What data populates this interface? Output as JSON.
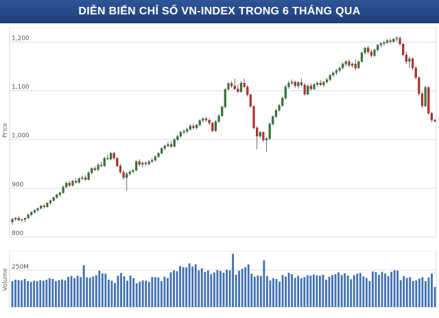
{
  "title": "DIỄN BIẾN CHỈ SỐ VN-INDEX TRONG 6 THÁNG QUA",
  "colors": {
    "header": "#2a4f8f",
    "up": "#2e7d32",
    "down": "#c62828",
    "volume": "#3f6fb0",
    "grid": "#dddddd"
  },
  "chart_data": [
    {
      "type": "candlestick",
      "ylabel": "Price",
      "ylim": [
        800,
        1230
      ],
      "yticks": [
        800,
        900,
        1000,
        1100,
        1200
      ],
      "ytick_labels": [
        "800",
        "900",
        "1,000",
        "1,100",
        "1,200"
      ],
      "grid": true,
      "ohlc": [
        [
          831,
          839,
          825,
          837
        ],
        [
          837,
          841,
          833,
          839
        ],
        [
          839,
          843,
          833,
          835
        ],
        [
          835,
          838,
          830,
          836
        ],
        [
          836,
          840,
          831,
          839
        ],
        [
          839,
          848,
          837,
          846
        ],
        [
          846,
          853,
          843,
          851
        ],
        [
          851,
          857,
          848,
          855
        ],
        [
          855,
          861,
          852,
          859
        ],
        [
          859,
          866,
          857,
          864
        ],
        [
          864,
          868,
          858,
          862
        ],
        [
          862,
          872,
          860,
          870
        ],
        [
          870,
          877,
          867,
          875
        ],
        [
          875,
          883,
          873,
          881
        ],
        [
          881,
          889,
          879,
          887
        ],
        [
          887,
          893,
          883,
          891
        ],
        [
          891,
          906,
          889,
          903
        ],
        [
          903,
          914,
          900,
          911
        ],
        [
          911,
          916,
          903,
          906
        ],
        [
          906,
          918,
          904,
          915
        ],
        [
          915,
          921,
          910,
          912
        ],
        [
          912,
          923,
          910,
          920
        ],
        [
          920,
          926,
          917,
          922
        ],
        [
          922,
          927,
          916,
          918
        ],
        [
          918,
          935,
          916,
          932
        ],
        [
          932,
          944,
          928,
          941
        ],
        [
          941,
          946,
          935,
          938
        ],
        [
          938,
          951,
          935,
          948
        ],
        [
          948,
          955,
          943,
          946
        ],
        [
          946,
          965,
          944,
          962
        ],
        [
          962,
          969,
          958,
          960
        ],
        [
          960,
          975,
          957,
          972
        ],
        [
          972,
          975,
          958,
          962
        ],
        [
          962,
          964,
          943,
          946
        ],
        [
          946,
          950,
          930,
          933
        ],
        [
          933,
          938,
          918,
          922
        ],
        [
          922,
          934,
          895,
          930
        ],
        [
          930,
          937,
          926,
          934
        ],
        [
          934,
          940,
          930,
          937
        ],
        [
          937,
          958,
          935,
          955
        ],
        [
          955,
          960,
          945,
          949
        ],
        [
          949,
          955,
          943,
          952
        ],
        [
          952,
          955,
          946,
          950
        ],
        [
          950,
          958,
          947,
          955
        ],
        [
          955,
          962,
          952,
          958
        ],
        [
          958,
          967,
          955,
          965
        ],
        [
          965,
          974,
          963,
          972
        ],
        [
          972,
          985,
          970,
          982
        ],
        [
          982,
          990,
          978,
          987
        ],
        [
          987,
          995,
          984,
          990
        ],
        [
          990,
          997,
          983,
          986
        ],
        [
          986,
          1003,
          984,
          1000
        ],
        [
          1000,
          1010,
          997,
          1007
        ],
        [
          1007,
          1018,
          1004,
          1015
        ],
        [
          1015,
          1021,
          1010,
          1017
        ],
        [
          1017,
          1025,
          1013,
          1021
        ],
        [
          1021,
          1031,
          1018,
          1028
        ],
        [
          1028,
          1033,
          1021,
          1024
        ],
        [
          1024,
          1032,
          1020,
          1030
        ],
        [
          1030,
          1042,
          1027,
          1039
        ],
        [
          1039,
          1046,
          1035,
          1043
        ],
        [
          1043,
          1047,
          1036,
          1040
        ],
        [
          1040,
          1044,
          1030,
          1034
        ],
        [
          1034,
          1036,
          1015,
          1018
        ],
        [
          1018,
          1040,
          1016,
          1037
        ],
        [
          1037,
          1052,
          1034,
          1049
        ],
        [
          1049,
          1070,
          1046,
          1067
        ],
        [
          1067,
          1106,
          1064,
          1103
        ],
        [
          1103,
          1118,
          1100,
          1115
        ],
        [
          1115,
          1120,
          1106,
          1110
        ],
        [
          1110,
          1125,
          1102,
          1104
        ],
        [
          1104,
          1113,
          1095,
          1098
        ],
        [
          1098,
          1120,
          1096,
          1116
        ],
        [
          1116,
          1125,
          1105,
          1108
        ],
        [
          1108,
          1112,
          1088,
          1092
        ],
        [
          1092,
          1094,
          1065,
          1068
        ],
        [
          1068,
          1070,
          1021,
          1024
        ],
        [
          1024,
          1028,
          980,
          1007
        ],
        [
          1007,
          1018,
          1003,
          1015
        ],
        [
          1015,
          1017,
          995,
          999
        ],
        [
          999,
          1005,
          975,
          1002
        ],
        [
          1002,
          1035,
          999,
          1032
        ],
        [
          1032,
          1050,
          1029,
          1047
        ],
        [
          1047,
          1063,
          1044,
          1060
        ],
        [
          1060,
          1073,
          1057,
          1070
        ],
        [
          1070,
          1088,
          1067,
          1085
        ],
        [
          1085,
          1112,
          1082,
          1108
        ],
        [
          1108,
          1120,
          1104,
          1116
        ],
        [
          1116,
          1123,
          1112,
          1118
        ],
        [
          1118,
          1121,
          1106,
          1110
        ],
        [
          1110,
          1120,
          1105,
          1117
        ],
        [
          1117,
          1125,
          1109,
          1112
        ],
        [
          1112,
          1116,
          1090,
          1093
        ],
        [
          1093,
          1113,
          1091,
          1110
        ],
        [
          1110,
          1115,
          1100,
          1104
        ],
        [
          1104,
          1116,
          1101,
          1113
        ],
        [
          1113,
          1120,
          1108,
          1116
        ],
        [
          1116,
          1122,
          1110,
          1112
        ],
        [
          1112,
          1120,
          1108,
          1118
        ],
        [
          1118,
          1126,
          1115,
          1123
        ],
        [
          1123,
          1135,
          1120,
          1132
        ],
        [
          1132,
          1140,
          1128,
          1137
        ],
        [
          1137,
          1145,
          1133,
          1142
        ],
        [
          1142,
          1150,
          1138,
          1147
        ],
        [
          1147,
          1158,
          1144,
          1155
        ],
        [
          1155,
          1163,
          1150,
          1160
        ],
        [
          1160,
          1165,
          1148,
          1152
        ],
        [
          1152,
          1158,
          1148,
          1155
        ],
        [
          1155,
          1165,
          1142,
          1147
        ],
        [
          1147,
          1162,
          1145,
          1160
        ],
        [
          1160,
          1180,
          1158,
          1178
        ],
        [
          1178,
          1190,
          1174,
          1188
        ],
        [
          1188,
          1192,
          1175,
          1180
        ],
        [
          1180,
          1185,
          1168,
          1172
        ],
        [
          1172,
          1186,
          1170,
          1184
        ],
        [
          1184,
          1196,
          1181,
          1194
        ],
        [
          1194,
          1200,
          1189,
          1197
        ],
        [
          1197,
          1203,
          1192,
          1199
        ],
        [
          1199,
          1206,
          1196,
          1203
        ],
        [
          1203,
          1208,
          1196,
          1201
        ],
        [
          1201,
          1209,
          1198,
          1206
        ],
        [
          1206,
          1212,
          1201,
          1208
        ],
        [
          1208,
          1212,
          1192,
          1196
        ],
        [
          1196,
          1198,
          1171,
          1174
        ],
        [
          1174,
          1180,
          1155,
          1160
        ],
        [
          1160,
          1170,
          1147,
          1166
        ],
        [
          1166,
          1168,
          1143,
          1147
        ],
        [
          1147,
          1150,
          1123,
          1127
        ],
        [
          1127,
          1130,
          1090,
          1094
        ],
        [
          1094,
          1098,
          1065,
          1069
        ],
        [
          1069,
          1110,
          1067,
          1107
        ],
        [
          1107,
          1109,
          1050,
          1054
        ],
        [
          1054,
          1057,
          1035,
          1040
        ],
        [
          1040,
          1043,
          1035,
          1038
        ]
      ]
    },
    {
      "type": "bar",
      "ylabel": "Volume",
      "yticks": [
        250
      ],
      "ytick_labels": [
        "250M"
      ],
      "ylim": [
        0,
        380
      ],
      "values": [
        175,
        185,
        182,
        180,
        190,
        176,
        170,
        178,
        175,
        182,
        178,
        185,
        195,
        190,
        175,
        182,
        186,
        180,
        204,
        210,
        195,
        212,
        203,
        283,
        200,
        198,
        206,
        215,
        245,
        228,
        225,
        185,
        178,
        163,
        212,
        230,
        208,
        178,
        213,
        195,
        160,
        171,
        180,
        178,
        170,
        203,
        202,
        200,
        175,
        205,
        196,
        235,
        248,
        242,
        277,
        270,
        268,
        295,
        274,
        289,
        248,
        262,
        238,
        247,
        222,
        233,
        250,
        244,
        232,
        253,
        247,
        360,
        218,
        245,
        258,
        269,
        288,
        225,
        205,
        213,
        210,
        316,
        210,
        180,
        195,
        190,
        172,
        217,
        206,
        232,
        222,
        198,
        211,
        195,
        202,
        215,
        213,
        220,
        215,
        212,
        218,
        185,
        205,
        216,
        222,
        234,
        216,
        228,
        213,
        188,
        215,
        225,
        230,
        206,
        197,
        175,
        240,
        236,
        218,
        238,
        226,
        210,
        238,
        249,
        246,
        182,
        210,
        196,
        202,
        176,
        180,
        192,
        202,
        175,
        200,
        226,
        136
      ]
    }
  ]
}
